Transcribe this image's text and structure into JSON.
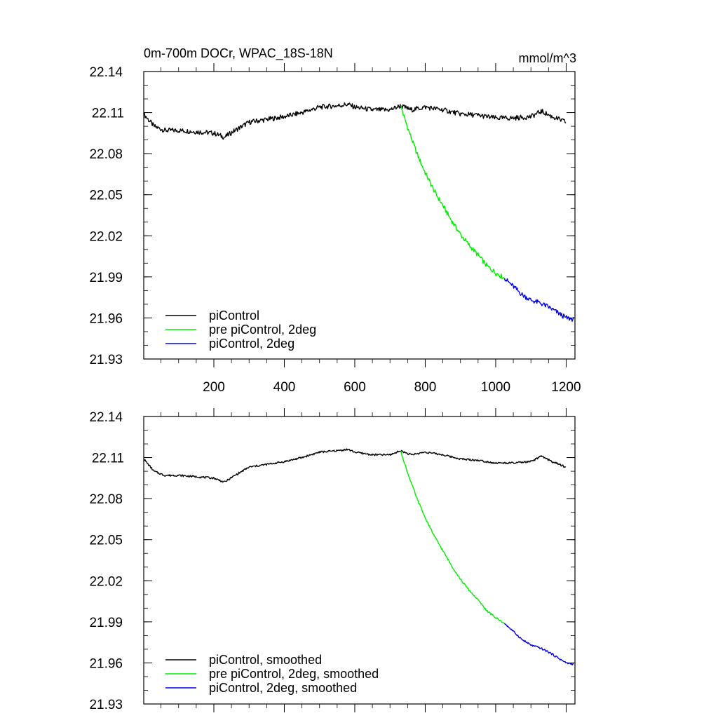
{
  "chart_data": [
    {
      "type": "line",
      "title": "0m-700m DOCr, WPAC_18S-18N",
      "units": "mmol/m^3",
      "xlim": [
        1,
        1225
      ],
      "ylim": [
        21.93,
        22.14
      ],
      "xticks": [
        200,
        400,
        600,
        800,
        1000,
        1200
      ],
      "xtick_labels": [
        "200",
        "400",
        "600",
        "800",
        "1000",
        "1200"
      ],
      "yticks": [
        22.14,
        22.11,
        22.08,
        22.05,
        22.02,
        21.99,
        21.96,
        21.93
      ],
      "ytick_labels": [
        "22.14",
        "22.11",
        "22.08",
        "22.05",
        "22.02",
        "21.99",
        "21.96",
        "21.93"
      ],
      "legend_position": "bottom-left",
      "noise": 0.0018,
      "series": [
        {
          "name": "piControl",
          "color": "#000000",
          "x": [
            1,
            30,
            60,
            100,
            150,
            200,
            230,
            260,
            300,
            350,
            400,
            450,
            500,
            550,
            580,
            600,
            650,
            700,
            730,
            760,
            800,
            850,
            900,
            950,
            1000,
            1050,
            1100,
            1130,
            1160,
            1200
          ],
          "y": [
            22.109,
            22.1,
            22.097,
            22.097,
            22.096,
            22.095,
            22.092,
            22.097,
            22.103,
            22.105,
            22.107,
            22.11,
            22.114,
            22.115,
            22.116,
            22.114,
            22.112,
            22.112,
            22.115,
            22.112,
            22.114,
            22.112,
            22.109,
            22.108,
            22.106,
            22.106,
            22.107,
            22.111,
            22.107,
            22.103
          ]
        },
        {
          "name": "pre piControl, 2deg",
          "color": "#00ee00",
          "x": [
            730,
            750,
            775,
            800,
            825,
            850,
            875,
            900,
            925,
            950,
            975,
            1000,
            1025
          ],
          "y": [
            22.115,
            22.099,
            22.081,
            22.066,
            22.053,
            22.042,
            22.031,
            22.021,
            22.013,
            22.006,
            21.998,
            21.993,
            21.989
          ]
        },
        {
          "name": "piControl, 2deg",
          "color": "#0000ee",
          "x": [
            1025,
            1050,
            1075,
            1100,
            1125,
            1150,
            1175,
            1200,
            1222
          ],
          "y": [
            21.989,
            21.983,
            21.977,
            21.973,
            21.971,
            21.968,
            21.964,
            21.96,
            21.959
          ]
        }
      ]
    },
    {
      "type": "line",
      "title": "",
      "units": "",
      "xlim": [
        1,
        1225
      ],
      "ylim": [
        21.93,
        22.14
      ],
      "xticks": [
        200,
        400,
        600,
        800,
        1000,
        1200
      ],
      "xtick_labels": [],
      "yticks": [
        22.14,
        22.11,
        22.08,
        22.05,
        22.02,
        21.99,
        21.96,
        21.93
      ],
      "ytick_labels": [
        "22.14",
        "22.11",
        "22.08",
        "22.05",
        "22.02",
        "21.99",
        "21.96",
        "21.93"
      ],
      "legend_position": "bottom-left",
      "noise": 0.0007,
      "series": [
        {
          "name": "piControl, smoothed",
          "color": "#000000",
          "x": [
            1,
            30,
            60,
            100,
            150,
            200,
            230,
            260,
            300,
            350,
            400,
            450,
            500,
            550,
            580,
            600,
            650,
            700,
            730,
            760,
            800,
            850,
            900,
            950,
            1000,
            1050,
            1100,
            1130,
            1160,
            1200
          ],
          "y": [
            22.109,
            22.1,
            22.097,
            22.097,
            22.096,
            22.095,
            22.092,
            22.097,
            22.103,
            22.105,
            22.107,
            22.11,
            22.114,
            22.115,
            22.116,
            22.114,
            22.112,
            22.112,
            22.115,
            22.112,
            22.114,
            22.112,
            22.109,
            22.108,
            22.106,
            22.106,
            22.107,
            22.111,
            22.107,
            22.103
          ]
        },
        {
          "name": "pre piControl, 2deg, smoothed",
          "color": "#00ee00",
          "x": [
            730,
            750,
            775,
            800,
            825,
            850,
            875,
            900,
            925,
            950,
            975,
            1000,
            1025
          ],
          "y": [
            22.115,
            22.099,
            22.081,
            22.066,
            22.053,
            22.042,
            22.031,
            22.021,
            22.013,
            22.006,
            21.998,
            21.993,
            21.989
          ]
        },
        {
          "name": "piControl, 2deg, smoothed",
          "color": "#0000ee",
          "x": [
            1025,
            1050,
            1075,
            1100,
            1125,
            1150,
            1175,
            1200,
            1222
          ],
          "y": [
            21.989,
            21.983,
            21.977,
            21.973,
            21.971,
            21.968,
            21.964,
            21.96,
            21.959
          ]
        }
      ]
    }
  ]
}
